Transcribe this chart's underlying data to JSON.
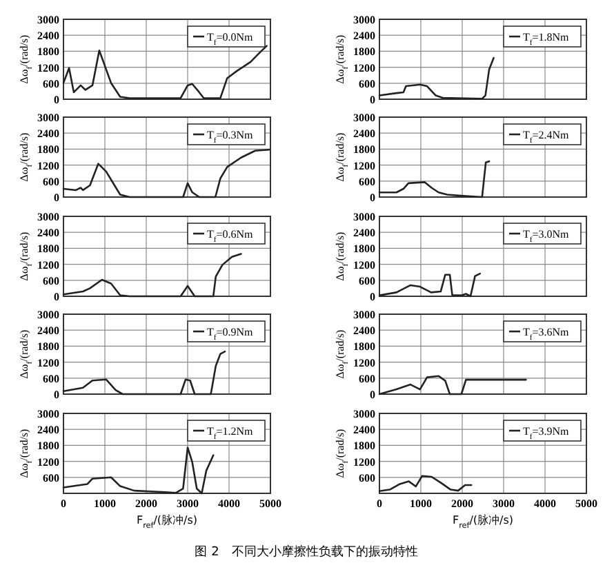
{
  "chart_data": [
    {
      "type": "line",
      "ylabel": "Δω$_{f}$/(rad/s)",
      "x": [
        0,
        135,
        250,
        415,
        530,
        700,
        865,
        1150,
        1370,
        1600,
        2830,
        3000,
        3110,
        3280,
        3390,
        3790,
        3955,
        4180,
        4520,
        4740,
        4910
      ],
      "series": [
        {
          "name": "T$_{f}$=0.0Nm",
          "color": "#222222",
          "values": [
            610,
            1170,
            260,
            520,
            350,
            520,
            1830,
            610,
            90,
            40,
            40,
            520,
            575,
            260,
            40,
            40,
            790,
            1050,
            1400,
            1750,
            2000
          ]
        }
      ],
      "xlim": [
        0,
        5000
      ],
      "xticks": [
        0,
        1000,
        2000,
        3000,
        4000,
        5000
      ],
      "ylim": [
        0,
        3000
      ],
      "yticks": [
        0,
        600,
        1200,
        1800,
        2400,
        3000
      ],
      "grid": true,
      "legend": "top right",
      "tick_labels": "y"
    },
    {
      "type": "line",
      "ylabel": "Δω$_{f}$/(rad/s)",
      "x": [
        0,
        300,
        415,
        470,
        640,
        840,
        1030,
        1370,
        1600,
        2890,
        3000,
        3110,
        3280,
        3670,
        3790,
        3955,
        4290,
        4630,
        4970
      ],
      "series": [
        {
          "name": "T$_{f}$=0.3Nm",
          "color": "#222222",
          "values": [
            310,
            260,
            350,
            260,
            440,
            1250,
            960,
            90,
            0,
            0,
            520,
            180,
            0,
            0,
            700,
            1130,
            1480,
            1740,
            1780
          ]
        }
      ],
      "xlim": [
        0,
        5000
      ],
      "xticks": [
        0,
        1000,
        2000,
        3000,
        4000,
        5000
      ],
      "ylim": [
        0,
        3000
      ],
      "yticks": [
        0,
        600,
        1200,
        1800,
        2400,
        3000
      ],
      "grid": true,
      "legend": "top right",
      "tick_labels": "y"
    },
    {
      "type": "line",
      "ylabel": "Δω$_{f}$/(rad/s)",
      "x": [
        0,
        470,
        640,
        930,
        1150,
        1370,
        1600,
        2830,
        3000,
        3170,
        3620,
        3680,
        3840,
        4070,
        4290
      ],
      "series": [
        {
          "name": "T$_{f}$=0.6Nm",
          "color": "#222222",
          "values": [
            70,
            180,
            300,
            620,
            480,
            40,
            0,
            0,
            390,
            0,
            0,
            740,
            1180,
            1480,
            1590
          ]
        }
      ],
      "xlim": [
        0,
        5000
      ],
      "xticks": [
        0,
        1000,
        2000,
        3000,
        4000,
        5000
      ],
      "ylim": [
        0,
        3000
      ],
      "yticks": [
        0,
        600,
        1200,
        1800,
        2400,
        3000
      ],
      "grid": true,
      "legend": "top right",
      "tick_labels": "y"
    },
    {
      "type": "line",
      "ylabel": "Δω$_{f}$/(rad/s)",
      "x": [
        0,
        470,
        700,
        1030,
        1260,
        1430,
        2830,
        2950,
        3060,
        3170,
        3560,
        3680,
        3790,
        3900
      ],
      "series": [
        {
          "name": "T$_{f}$=0.9Nm",
          "color": "#222222",
          "values": [
            110,
            240,
            510,
            550,
            150,
            0,
            0,
            550,
            510,
            0,
            0,
            1060,
            1510,
            1600
          ]
        }
      ],
      "xlim": [
        0,
        5000
      ],
      "xticks": [
        0,
        1000,
        2000,
        3000,
        4000,
        5000
      ],
      "ylim": [
        0,
        3000
      ],
      "yticks": [
        0,
        600,
        1200,
        1800,
        2400,
        3000
      ],
      "grid": true,
      "legend": "top right",
      "tick_labels": "y"
    },
    {
      "type": "line",
      "ylabel": "Δω$_{f}$/(rad/s)",
      "xlabel": "F$_{ref}$/(脉冲/s)",
      "x": [
        0,
        580,
        700,
        1150,
        1370,
        1710,
        2380,
        2720,
        2890,
        3000,
        3110,
        3220,
        3340,
        3450,
        3620
      ],
      "series": [
        {
          "name": "T$_{f}$=1.2Nm",
          "color": "#222222",
          "values": [
            220,
            350,
            550,
            600,
            270,
            100,
            50,
            20,
            180,
            1720,
            1180,
            180,
            0,
            850,
            1430
          ]
        }
      ],
      "xlim": [
        0,
        5000
      ],
      "xticks": [
        0,
        1000,
        2000,
        3000,
        4000,
        5000
      ],
      "ylim": [
        0,
        3000
      ],
      "yticks": [
        {
          "value": 0,
          "label": null
        },
        600,
        1200,
        1800,
        2400,
        3000
      ],
      "grid": true,
      "legend": "top right",
      "annotations": [
        "图 2　不同大小摩擦性负载下的振动特性"
      ]
    },
    {
      "type": "line",
      "ylabel": "Δω$_{f}$/(rad/s)",
      "x": [
        0,
        410,
        580,
        640,
        980,
        1150,
        1360,
        1530,
        2480,
        2560,
        2650,
        2760
      ],
      "series": [
        {
          "name": "T$_{f}$=1.8Nm",
          "color": "#222222",
          "values": [
            140,
            230,
            260,
            490,
            550,
            490,
            140,
            50,
            20,
            140,
            1110,
            1550
          ]
        }
      ],
      "xlim": [
        0,
        5000
      ],
      "xticks": [
        0,
        1000,
        2000,
        3000,
        4000,
        5000
      ],
      "ylim": [
        0,
        3000
      ],
      "yticks": [
        0,
        600,
        1200,
        1800,
        2400,
        3000
      ],
      "grid": true,
      "legend": "top right",
      "tick_labels": "y"
    },
    {
      "type": "line",
      "ylabel": "Δω$_{f}$/(rad/s)",
      "x": [
        0,
        410,
        580,
        700,
        1090,
        1260,
        1430,
        1640,
        2090,
        2480,
        2570,
        2650
      ],
      "series": [
        {
          "name": "T$_{f}$=2.4Nm",
          "color": "#222222",
          "values": [
            175,
            175,
            310,
            520,
            560,
            350,
            175,
            90,
            35,
            0,
            1300,
            1340
          ]
        }
      ],
      "xlim": [
        0,
        5000
      ],
      "xticks": [
        0,
        1000,
        2000,
        3000,
        4000,
        5000
      ],
      "ylim": [
        0,
        3000
      ],
      "yticks": [
        0,
        600,
        1200,
        1800,
        2400,
        3000
      ],
      "grid": true,
      "legend": "top right",
      "tick_labels": "y"
    },
    {
      "type": "line",
      "ylabel": "Δω$_{f}$/(rad/s)",
      "x": [
        0,
        410,
        750,
        980,
        1250,
        1480,
        1590,
        1700,
        1760,
        1980,
        2090,
        2200,
        2310,
        2430
      ],
      "series": [
        {
          "name": "T$_{f}$=3.0Nm",
          "color": "#222222",
          "values": [
            35,
            145,
            415,
            360,
            145,
            180,
            810,
            810,
            35,
            35,
            90,
            0,
            760,
            850
          ]
        }
      ],
      "xlim": [
        0,
        5000
      ],
      "xticks": [
        0,
        1000,
        2000,
        3000,
        4000,
        5000
      ],
      "ylim": [
        0,
        3000
      ],
      "yticks": [
        0,
        600,
        1200,
        1800,
        2400,
        3000
      ],
      "grid": true,
      "legend": "top right",
      "tick_labels": "y"
    },
    {
      "type": "line",
      "ylabel": "Δω$_{f}$/(rad/s)",
      "x": [
        0,
        410,
        750,
        980,
        1150,
        1430,
        1590,
        1700,
        1980,
        2090,
        3540
      ],
      "series": [
        {
          "name": "T$_{f}$=3.6Nm",
          "color": "#222222",
          "values": [
            0,
            180,
            360,
            180,
            630,
            680,
            500,
            0,
            0,
            540,
            540
          ]
        }
      ],
      "xlim": [
        0,
        5000
      ],
      "xticks": [
        0,
        1000,
        2000,
        3000,
        4000,
        5000
      ],
      "ylim": [
        0,
        3000
      ],
      "yticks": [
        0,
        600,
        1200,
        1800,
        2400,
        3000
      ],
      "grid": true,
      "legend": "top right",
      "tick_labels": "y"
    },
    {
      "type": "line",
      "ylabel": "Δω$_{f}$/(rad/s)",
      "xlabel": "F$_{ref}$/(脉冲/s)",
      "x": [
        0,
        250,
        480,
        710,
        880,
        1030,
        1260,
        1490,
        1720,
        1900,
        2070,
        2220
      ],
      "series": [
        {
          "name": "T$_{f}$=3.9Nm",
          "color": "#222222",
          "values": [
            85,
            140,
            340,
            450,
            260,
            650,
            620,
            390,
            140,
            100,
            310,
            310
          ]
        }
      ],
      "xlim": [
        0,
        5000
      ],
      "xticks": [
        0,
        1000,
        2000,
        3000,
        4000,
        5000
      ],
      "ylim": [
        0,
        3000
      ],
      "yticks": [
        {
          "value": 0,
          "label": null
        },
        600,
        1200,
        1800,
        2400,
        3000
      ],
      "grid": true,
      "legend": "top right"
    }
  ]
}
